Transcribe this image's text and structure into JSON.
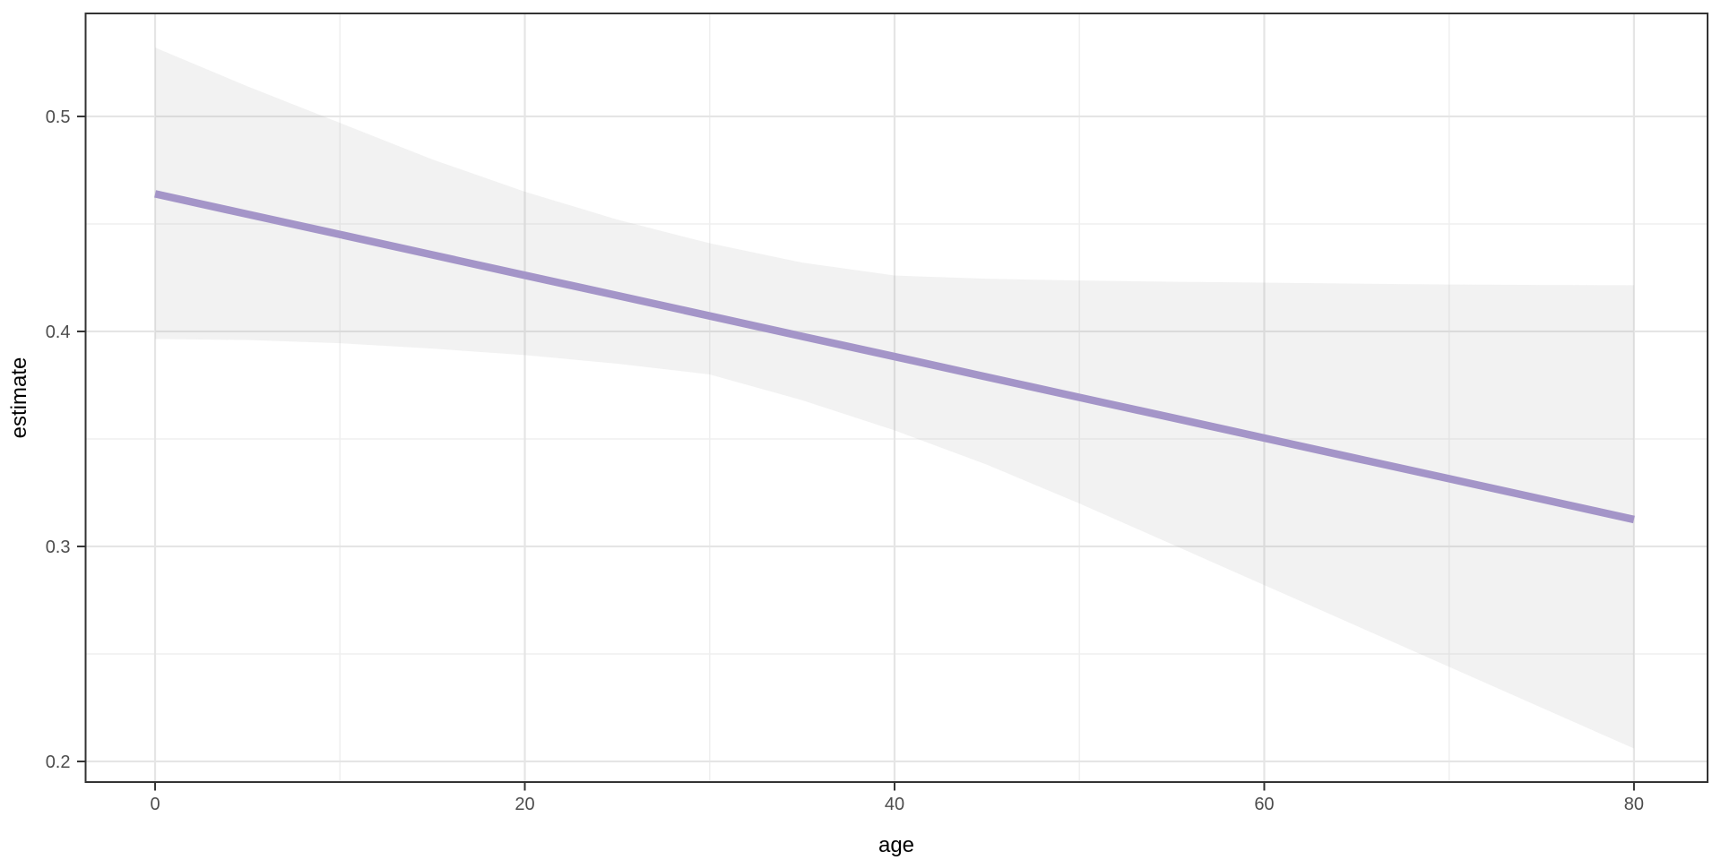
{
  "chart_data": {
    "type": "line",
    "title": "",
    "xlabel": "age",
    "ylabel": "estimate",
    "xlim": [
      -3.76,
      83.98
    ],
    "ylim": [
      0.1904,
      0.5479
    ],
    "grid": true,
    "legend_position": "none",
    "panel_background": "#ffffff",
    "x_ticks": {
      "major": [
        0,
        20,
        40,
        60,
        80
      ],
      "labels": [
        "0",
        "20",
        "40",
        "60",
        "80"
      ],
      "minor": [
        10,
        30,
        50,
        70
      ]
    },
    "y_ticks": {
      "major": [
        0.2,
        0.3,
        0.4,
        0.5
      ],
      "labels": [
        "0.2",
        "0.3",
        "0.4",
        "0.5"
      ],
      "minor": [
        0.25,
        0.35,
        0.45
      ]
    },
    "x": [
      0,
      5,
      10,
      15,
      20,
      25,
      30,
      35,
      40,
      45,
      50,
      55,
      60,
      65,
      70,
      75,
      80
    ],
    "series": [
      {
        "name": "fit",
        "type": "line",
        "color": "#a495c8",
        "stroke_width": 8.5,
        "values": [
          0.464,
          0.4545,
          0.4451,
          0.4356,
          0.4261,
          0.4167,
          0.4072,
          0.3977,
          0.3883,
          0.3788,
          0.3693,
          0.3599,
          0.3504,
          0.3409,
          0.3315,
          0.322,
          0.3125
        ]
      },
      {
        "name": "confidence_ribbon",
        "type": "ribbon",
        "fill": "#999999",
        "fill_opacity": 0.13,
        "upper": [
          0.532,
          0.514,
          0.497,
          0.48,
          0.465,
          0.452,
          0.441,
          0.432,
          0.426,
          0.4245,
          0.4237,
          0.4231,
          0.4227,
          0.4222,
          0.4218,
          0.4216,
          0.4215
        ],
        "lower": [
          0.3965,
          0.396,
          0.3945,
          0.392,
          0.389,
          0.385,
          0.38,
          0.368,
          0.354,
          0.338,
          0.32,
          0.301,
          0.282,
          0.263,
          0.244,
          0.225,
          0.206
        ]
      }
    ],
    "colors": {
      "line": "#a495c8",
      "ribbon": "#999999",
      "grid_major": "#e5e5e5",
      "grid_minor": "#efefef",
      "panel_border": "#333333",
      "tick_mark": "#333333",
      "tick_label": "#4d4d4d",
      "axis_title": "#000000"
    }
  }
}
